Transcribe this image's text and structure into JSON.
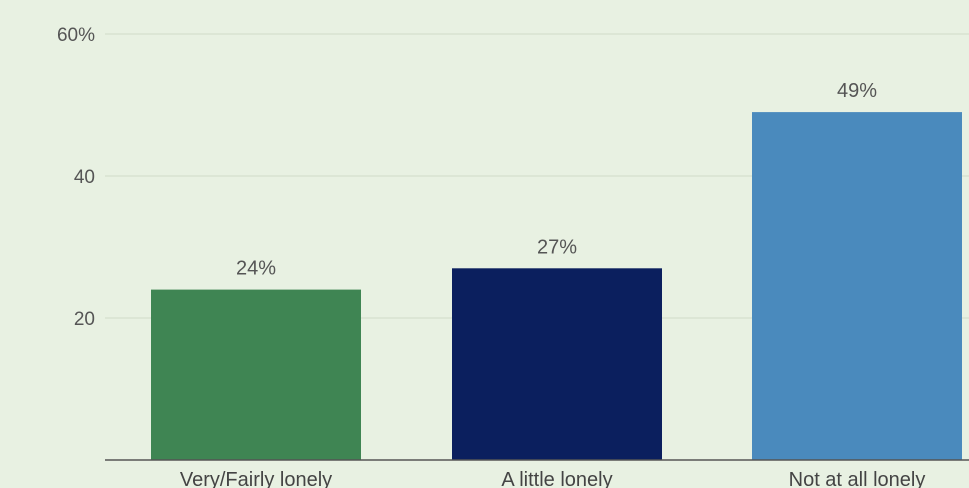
{
  "chart_data": {
    "type": "bar",
    "title": "",
    "xlabel": "",
    "ylabel": "",
    "categories": [
      "Very/Fairly lonely",
      "A little lonely",
      "Not at all lonely"
    ],
    "values": [
      24,
      27,
      49
    ],
    "data_labels": [
      "24%",
      "27%",
      "49%"
    ],
    "colors": [
      "#3f8553",
      "#0b1f5e",
      "#4a8abd"
    ],
    "ylim": [
      0,
      60
    ],
    "yticks": [
      20,
      40,
      60
    ],
    "ytick_labels": [
      "20",
      "40",
      "60%"
    ],
    "grid": true,
    "legend": "none",
    "background": "#e8f1e2",
    "gridline_color": "#cfdcc8",
    "axis_color": "#555555"
  }
}
